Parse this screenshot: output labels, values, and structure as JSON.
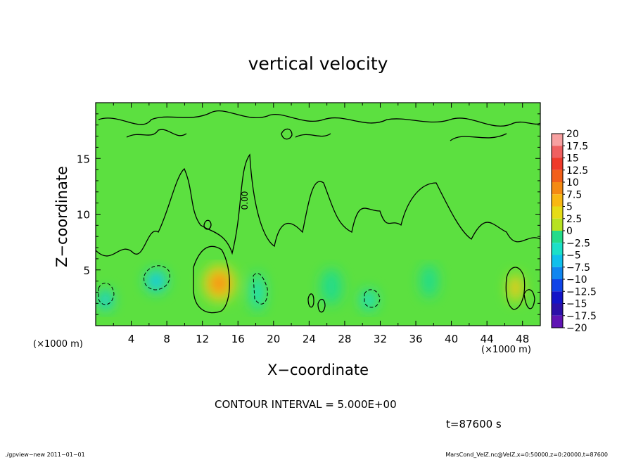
{
  "chart_data": {
    "type": "heatmap",
    "title": "vertical velocity",
    "xlabel": "X−coordinate",
    "ylabel": "Z−coordinate",
    "x_unit_left": "(×1000 m)",
    "x_unit_right": "(×1000 m)",
    "xlim": [
      0,
      50
    ],
    "ylim": [
      0,
      20
    ],
    "x_ticks": [
      "4",
      "8",
      "12",
      "16",
      "20",
      "24",
      "28",
      "32",
      "36",
      "40",
      "44",
      "48"
    ],
    "x_tick_values": [
      4,
      8,
      12,
      16,
      20,
      24,
      28,
      32,
      36,
      40,
      44,
      48
    ],
    "y_ticks": [
      "5",
      "10",
      "15"
    ],
    "y_tick_values": [
      5,
      10,
      15
    ],
    "colorbar_labels": [
      "20",
      "17.5",
      "15",
      "12.5",
      "10",
      "7.5",
      "5",
      "2.5",
      "0",
      "−2.5",
      "−5",
      "−7.5",
      "−10",
      "−12.5",
      "−15",
      "−17.5",
      "−20"
    ],
    "colorbar_colors": [
      "#f7a0a0",
      "#ef6060",
      "#ee3a2a",
      "#f2601a",
      "#f58a12",
      "#f9b812",
      "#e6dc16",
      "#b7e222",
      "#5ce040",
      "#24dc8a",
      "#1ce0c8",
      "#10c0ec",
      "#1086f0",
      "#1044e8",
      "#1414c8",
      "#2c10a8",
      "#6014b4"
    ],
    "contour_label": "0.00",
    "contour_interval_text": "CONTOUR INTERVAL = 5.000E+00",
    "time_text": "t=87600  s",
    "features": [
      {
        "x": 13.9,
        "z": 3.8,
        "value": 9.0,
        "sx": 1.9,
        "sz": 1.7
      },
      {
        "x": 47.2,
        "z": 3.4,
        "value": 8.0,
        "sx": 0.9,
        "sz": 1.3
      },
      {
        "x": 6.8,
        "z": 4.0,
        "value": -7.0,
        "sx": 1.3,
        "sz": 1.1
      },
      {
        "x": 1.1,
        "z": 2.3,
        "value": -6.5,
        "sx": 0.9,
        "sz": 1.0
      },
      {
        "x": 30.7,
        "z": 2.3,
        "value": -5.0,
        "sx": 1.0,
        "sz": 1.0
      },
      {
        "x": 18.2,
        "z": 3.0,
        "value": -4.0,
        "sx": 0.8,
        "sz": 1.8
      },
      {
        "x": 26.5,
        "z": 3.5,
        "value": -2.5,
        "sx": 1.2,
        "sz": 1.6
      },
      {
        "x": 37.5,
        "z": 4.0,
        "value": -3.0,
        "sx": 1.0,
        "sz": 1.5
      }
    ]
  },
  "footer": {
    "left": "./gpview−new   2011−01−01",
    "right": "MarsCond_VelZ.nc@VelZ,x=0:50000,z=0:20000,t=87600"
  }
}
